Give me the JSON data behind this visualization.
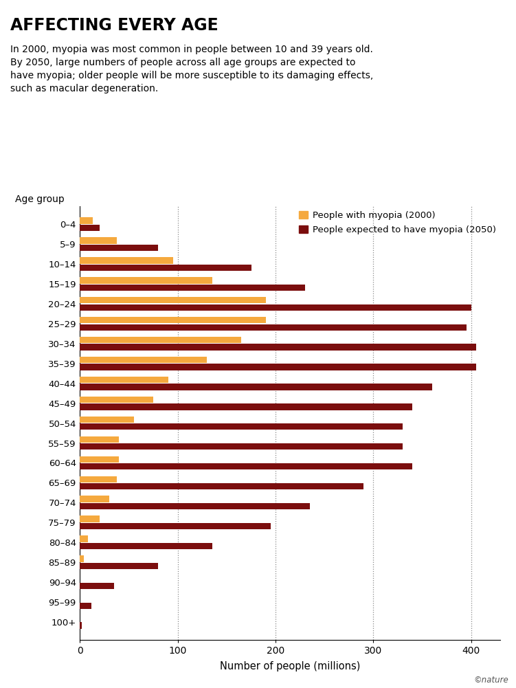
{
  "title": "AFFECTING EVERY AGE",
  "subtitle": "In 2000, myopia was most common in people between 10 and 39 years old.\nBy 2050, large numbers of people across all age groups are expected to\nhave myopia; older people will be more susceptible to its damaging effects,\nsuch as macular degeneration.",
  "ylabel": "Age group",
  "xlabel": "Number of people (millions)",
  "age_groups": [
    "0–4",
    "5–9",
    "10–14",
    "15–19",
    "20–24",
    "25–29",
    "30–34",
    "35–39",
    "40–44",
    "45–49",
    "50–54",
    "55–59",
    "60–64",
    "65–69",
    "70–74",
    "75–79",
    "80–84",
    "85–89",
    "90–94",
    "95–99",
    "100+"
  ],
  "values_2000": [
    13,
    38,
    95,
    135,
    190,
    190,
    165,
    130,
    90,
    75,
    55,
    40,
    40,
    38,
    30,
    20,
    8,
    4,
    0,
    0,
    0
  ],
  "values_2050": [
    20,
    80,
    175,
    230,
    400,
    395,
    405,
    405,
    360,
    340,
    330,
    330,
    340,
    290,
    235,
    195,
    135,
    80,
    35,
    12,
    2
  ],
  "color_2000": "#F5A93E",
  "color_2050": "#7B0E0E",
  "legend_2000": "People with myopia (2000)",
  "legend_2050": "People expected to have myopia (2050)",
  "xlim": [
    0,
    430
  ],
  "xticks": [
    0,
    100,
    200,
    300,
    400
  ],
  "background": "#ffffff",
  "grid_color": "#888888",
  "watermark": "©nature"
}
